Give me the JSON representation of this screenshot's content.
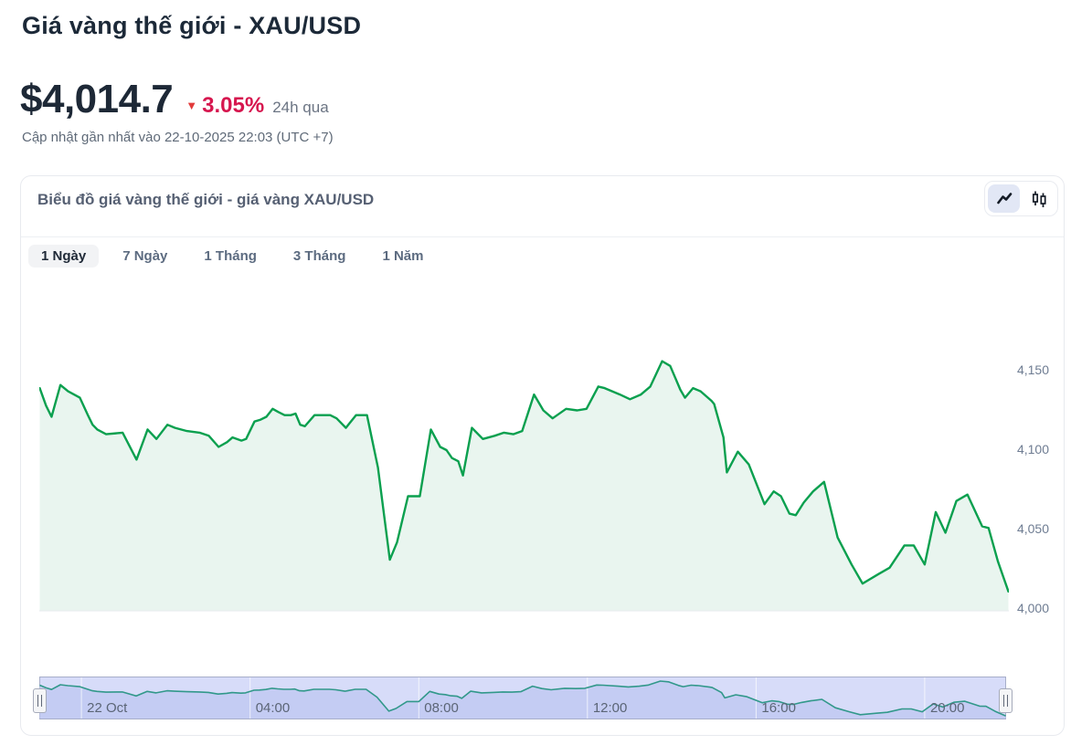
{
  "header": {
    "title": "Giá vàng thế giới - XAU/USD",
    "price": "$4,014.7",
    "change_arrow": "▼",
    "change_percent": "3.05%",
    "change_direction": "down",
    "change_period": "24h qua",
    "updated": "Cập nhật gần nhất vào 22-10-2025 22:03 (UTC +7)"
  },
  "card": {
    "title": "Biểu đồ giá vàng thế giới - giá vàng XAU/USD",
    "toggle": {
      "line": {
        "name": "line-chart",
        "active": true
      },
      "candlestick": {
        "name": "candlestick-chart",
        "active": false
      }
    },
    "tabs": [
      {
        "label": "1 Ngày",
        "active": true
      },
      {
        "label": "7 Ngày",
        "active": false
      },
      {
        "label": "1 Tháng",
        "active": false
      },
      {
        "label": "3 Tháng",
        "active": false
      },
      {
        "label": "1 Năm",
        "active": false
      }
    ]
  },
  "chart_data": {
    "type": "area",
    "series_name": "XAU/USD",
    "line_color": "#0ba04f",
    "fill_color": "#e9f5ef",
    "grid": false,
    "x_unit": "hours from 22 Oct 00:00",
    "xlim": [
      -1.0,
      21.93
    ],
    "ylim": [
      3995,
      4170
    ],
    "y_ticks": [
      {
        "value": 4150,
        "label": "4,150"
      },
      {
        "value": 4100,
        "label": "4,100"
      },
      {
        "value": 4050,
        "label": "4,050"
      },
      {
        "value": 4000,
        "label": "4,000"
      }
    ],
    "x_axis": [
      {
        "t": 0,
        "label": "22 Oct"
      },
      {
        "t": 4,
        "label": "04:00"
      },
      {
        "t": 8,
        "label": "08:00"
      },
      {
        "t": 12,
        "label": "12:00"
      },
      {
        "t": 16,
        "label": "16:00"
      },
      {
        "t": 20,
        "label": "20:00"
      }
    ],
    "points": [
      [
        -0.99,
        4139
      ],
      [
        -0.84,
        4128
      ],
      [
        -0.71,
        4121
      ],
      [
        -0.5,
        4141
      ],
      [
        -0.32,
        4137
      ],
      [
        -0.04,
        4133
      ],
      [
        0.15,
        4122
      ],
      [
        0.26,
        4116
      ],
      [
        0.37,
        4113
      ],
      [
        0.58,
        4110
      ],
      [
        0.97,
        4111
      ],
      [
        1.3,
        4094
      ],
      [
        1.56,
        4113
      ],
      [
        1.77,
        4107
      ],
      [
        2.03,
        4116
      ],
      [
        2.21,
        4114
      ],
      [
        2.49,
        4112
      ],
      [
        2.79,
        4111
      ],
      [
        3.01,
        4109
      ],
      [
        3.24,
        4102
      ],
      [
        3.44,
        4105
      ],
      [
        3.57,
        4108
      ],
      [
        3.78,
        4106
      ],
      [
        3.89,
        4107
      ],
      [
        4.09,
        4118
      ],
      [
        4.22,
        4119
      ],
      [
        4.37,
        4121
      ],
      [
        4.52,
        4126
      ],
      [
        4.65,
        4124
      ],
      [
        4.8,
        4122
      ],
      [
        4.95,
        4122
      ],
      [
        5.06,
        4123
      ],
      [
        5.17,
        4116
      ],
      [
        5.28,
        4115
      ],
      [
        5.51,
        4122
      ],
      [
        5.88,
        4122
      ],
      [
        6.03,
        4120
      ],
      [
        6.25,
        4114
      ],
      [
        6.49,
        4122
      ],
      [
        6.75,
        4122
      ],
      [
        7.01,
        4089
      ],
      [
        7.29,
        4031
      ],
      [
        7.46,
        4042
      ],
      [
        7.72,
        4071
      ],
      [
        8.0,
        4071
      ],
      [
        8.26,
        4113
      ],
      [
        8.48,
        4102
      ],
      [
        8.63,
        4100
      ],
      [
        8.76,
        4095
      ],
      [
        8.91,
        4093
      ],
      [
        9.02,
        4084
      ],
      [
        9.23,
        4114
      ],
      [
        9.49,
        4107
      ],
      [
        9.77,
        4109
      ],
      [
        9.99,
        4111
      ],
      [
        10.21,
        4110
      ],
      [
        10.42,
        4112
      ],
      [
        10.7,
        4135
      ],
      [
        10.92,
        4125
      ],
      [
        11.14,
        4120
      ],
      [
        11.46,
        4126
      ],
      [
        11.72,
        4125
      ],
      [
        11.94,
        4126
      ],
      [
        12.22,
        4140
      ],
      [
        12.37,
        4139
      ],
      [
        12.73,
        4135
      ],
      [
        12.97,
        4132
      ],
      [
        13.23,
        4135
      ],
      [
        13.45,
        4140
      ],
      [
        13.73,
        4156
      ],
      [
        13.92,
        4153
      ],
      [
        14.16,
        4138
      ],
      [
        14.27,
        4133
      ],
      [
        14.46,
        4139
      ],
      [
        14.64,
        4137
      ],
      [
        14.9,
        4131
      ],
      [
        14.96,
        4129
      ],
      [
        15.18,
        4108
      ],
      [
        15.26,
        4086
      ],
      [
        15.52,
        4099
      ],
      [
        15.78,
        4091
      ],
      [
        16.15,
        4066
      ],
      [
        16.37,
        4074
      ],
      [
        16.54,
        4071
      ],
      [
        16.74,
        4060
      ],
      [
        16.89,
        4059
      ],
      [
        17.08,
        4067
      ],
      [
        17.3,
        4074
      ],
      [
        17.56,
        4080
      ],
      [
        17.88,
        4045
      ],
      [
        18.21,
        4028
      ],
      [
        18.47,
        4016
      ],
      [
        18.85,
        4022
      ],
      [
        19.11,
        4026
      ],
      [
        19.46,
        4040
      ],
      [
        19.68,
        4040
      ],
      [
        19.94,
        4028
      ],
      [
        20.2,
        4061
      ],
      [
        20.43,
        4048
      ],
      [
        20.69,
        4068
      ],
      [
        20.95,
        4072
      ],
      [
        21.3,
        4052
      ],
      [
        21.45,
        4051
      ],
      [
        21.67,
        4030
      ],
      [
        21.92,
        4011
      ]
    ],
    "navigator": {
      "bg_color": "#d7dcf9",
      "fill_color": "#c4ccf3",
      "line_color": "#31988a",
      "border_color": "#a7aec9",
      "gridline_color": "rgba(255,255,255,0.7)"
    }
  }
}
